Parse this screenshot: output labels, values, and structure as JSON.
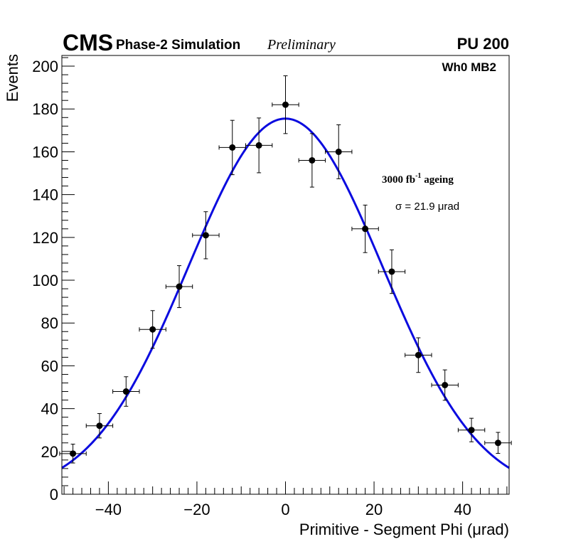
{
  "header": {
    "experiment": "CMS",
    "subtitle": "Phase-2 Simulation",
    "status": "Preliminary",
    "pileup": "PU 200",
    "region": "Wh0 MB2",
    "ageing_base": "3000 fb",
    "ageing_exp": "-1",
    "ageing_suffix": " ageing",
    "sigma_label": "σ = 21.9 μrad"
  },
  "chart_data": {
    "type": "scatter",
    "title": "",
    "xlabel": "Primitive - Segment Phi (μrad)",
    "ylabel": "Events",
    "xlim": [
      -50.5,
      50.5
    ],
    "ylim": [
      0,
      205
    ],
    "x_ticks": [
      -40,
      -20,
      0,
      20,
      40
    ],
    "x_tick_labels": [
      "−40",
      "−20",
      "0",
      "20",
      "40"
    ],
    "y_ticks": [
      0,
      20,
      40,
      60,
      80,
      100,
      120,
      140,
      160,
      180,
      200
    ],
    "y_tick_labels": [
      "0",
      "20",
      "40",
      "60",
      "80",
      "100",
      "120",
      "140",
      "160",
      "180",
      "200"
    ],
    "grid": false,
    "bin_half_width": 3,
    "series": [
      {
        "name": "Data",
        "color": "#000000",
        "x": [
          -48,
          -42,
          -36,
          -30,
          -24,
          -18,
          -12,
          -6,
          0,
          6,
          12,
          18,
          24,
          30,
          36,
          42,
          48
        ],
        "y": [
          19,
          32,
          48,
          77,
          97,
          121,
          162,
          163,
          182,
          156,
          160,
          124,
          104,
          65,
          51,
          30,
          24
        ],
        "yerr": [
          4.4,
          5.7,
          6.9,
          8.8,
          9.8,
          11.0,
          12.7,
          12.8,
          13.5,
          12.5,
          12.6,
          11.1,
          10.2,
          8.1,
          7.1,
          5.5,
          4.9
        ]
      },
      {
        "name": "Gaussian fit",
        "type": "line",
        "color": "#0b0bdf",
        "function": "gaussian",
        "amplitude": 175.5,
        "mean": 0,
        "sigma": 21.9
      }
    ]
  }
}
